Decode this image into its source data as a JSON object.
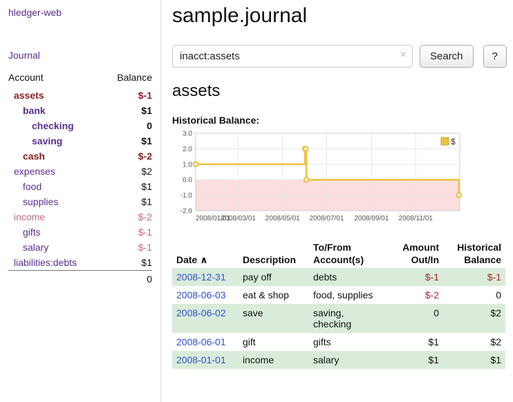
{
  "colors": {
    "link_purple": "#5c2d91",
    "date_blue": "#2d51cf",
    "negative_dark": "#8b1c1c",
    "negative_red": "#b22222",
    "negative_rose": "#c06a80",
    "row_green": "#d9ecd9",
    "chart_line": "#edc240",
    "chart_negative_fill": "#fbdede"
  },
  "sidebar": {
    "app_title": "hledger-web",
    "journal_link": "Journal",
    "accounts_header": {
      "account": "Account",
      "balance": "Balance"
    },
    "accounts": [
      {
        "name": "assets",
        "balance": "$-1",
        "indent": 0,
        "bold": true,
        "name_class": "neg-strong",
        "balance_class": "neg-strong"
      },
      {
        "name": "bank",
        "balance": "$1",
        "indent": 1,
        "bold": true,
        "name_class": "",
        "balance_class": ""
      },
      {
        "name": "checking",
        "balance": "0",
        "indent": 2,
        "bold": true,
        "name_class": "",
        "balance_class": ""
      },
      {
        "name": "saving",
        "balance": "$1",
        "indent": 2,
        "bold": true,
        "name_class": "",
        "balance_class": ""
      },
      {
        "name": "cash",
        "balance": "$-2",
        "indent": 1,
        "bold": true,
        "name_class": "neg-strong",
        "balance_class": "neg-strong"
      },
      {
        "name": "expenses",
        "balance": "$2",
        "indent": 0,
        "bold": false,
        "name_class": "",
        "balance_class": ""
      },
      {
        "name": "food",
        "balance": "$1",
        "indent": 1,
        "bold": false,
        "name_class": "",
        "balance_class": ""
      },
      {
        "name": "supplies",
        "balance": "$1",
        "indent": 1,
        "bold": false,
        "name_class": "",
        "balance_class": ""
      },
      {
        "name": "income",
        "balance": "$-2",
        "indent": 0,
        "bold": false,
        "name_class": "neg-soft",
        "balance_class": "neg-soft"
      },
      {
        "name": "gifts",
        "balance": "$-1",
        "indent": 1,
        "bold": false,
        "name_class": "",
        "balance_class": "neg-soft"
      },
      {
        "name": "salary",
        "balance": "$-1",
        "indent": 1,
        "bold": false,
        "name_class": "",
        "balance_class": "neg-soft"
      },
      {
        "name": "liabilities:debts",
        "balance": "$1",
        "indent": 0,
        "bold": false,
        "name_class": "",
        "balance_class": ""
      }
    ],
    "total": "0"
  },
  "header": {
    "title": "sample.journal"
  },
  "search": {
    "value": "inacct:assets",
    "clear_icon": "×",
    "button_label": "Search",
    "help_label": "?"
  },
  "main": {
    "account_heading": "assets",
    "chart_label": "Historical Balance:"
  },
  "chart_data": {
    "type": "line",
    "step": true,
    "title": "Historical Balance:",
    "ylim": [
      -2,
      3
    ],
    "yticks": [
      3.0,
      2.0,
      1.0,
      0.0,
      -1.0,
      -2.0
    ],
    "xticks": [
      {
        "pos": 0.0,
        "label": "2008/01/01"
      },
      {
        "pos": 0.162,
        "label": "2008/03/01"
      },
      {
        "pos": 0.329,
        "label": "2008/05/01"
      },
      {
        "pos": 0.496,
        "label": "2008/07/01"
      },
      {
        "pos": 0.666,
        "label": "2008/09/01"
      },
      {
        "pos": 0.833,
        "label": "2008/11/01"
      }
    ],
    "series": [
      {
        "name": "$",
        "color": "#edc240",
        "points": [
          {
            "date": "2008-01-01",
            "pos": 0.0,
            "value": 1
          },
          {
            "date": "2008-06-01",
            "pos": 0.414,
            "value": 2
          },
          {
            "date": "2008-06-02",
            "pos": 0.417,
            "value": 2
          },
          {
            "date": "2008-06-03",
            "pos": 0.419,
            "value": 0
          },
          {
            "date": "2008-12-31",
            "pos": 0.997,
            "value": -1
          }
        ]
      }
    ],
    "legend_position": "top-right",
    "grid": true
  },
  "register": {
    "columns": [
      {
        "label": "Date",
        "sort_icon": "∧"
      },
      {
        "label": "Description"
      },
      {
        "label": "To/From Account(s)"
      },
      {
        "label": "Amount Out/In"
      },
      {
        "label": "Historical Balance"
      }
    ],
    "rows": [
      {
        "date": "2008-12-31",
        "description": "pay off",
        "accounts": "debts",
        "amount": "$-1",
        "balance": "$-1",
        "amount_negative": true,
        "balance_negative": true
      },
      {
        "date": "2008-06-03",
        "description": "eat & shop",
        "accounts": "food, supplies",
        "amount": "$-2",
        "balance": "0",
        "amount_negative": true,
        "balance_negative": false
      },
      {
        "date": "2008-06-02",
        "description": "save",
        "accounts": "saving,\nchecking",
        "amount": "0",
        "balance": "$2",
        "amount_negative": false,
        "balance_negative": false
      },
      {
        "date": "2008-06-01",
        "description": "gift",
        "accounts": "gifts",
        "amount": "$1",
        "balance": "$2",
        "amount_negative": false,
        "balance_negative": false
      },
      {
        "date": "2008-01-01",
        "description": "income",
        "accounts": "salary",
        "amount": "$1",
        "balance": "$1",
        "amount_negative": false,
        "balance_negative": false
      }
    ]
  }
}
